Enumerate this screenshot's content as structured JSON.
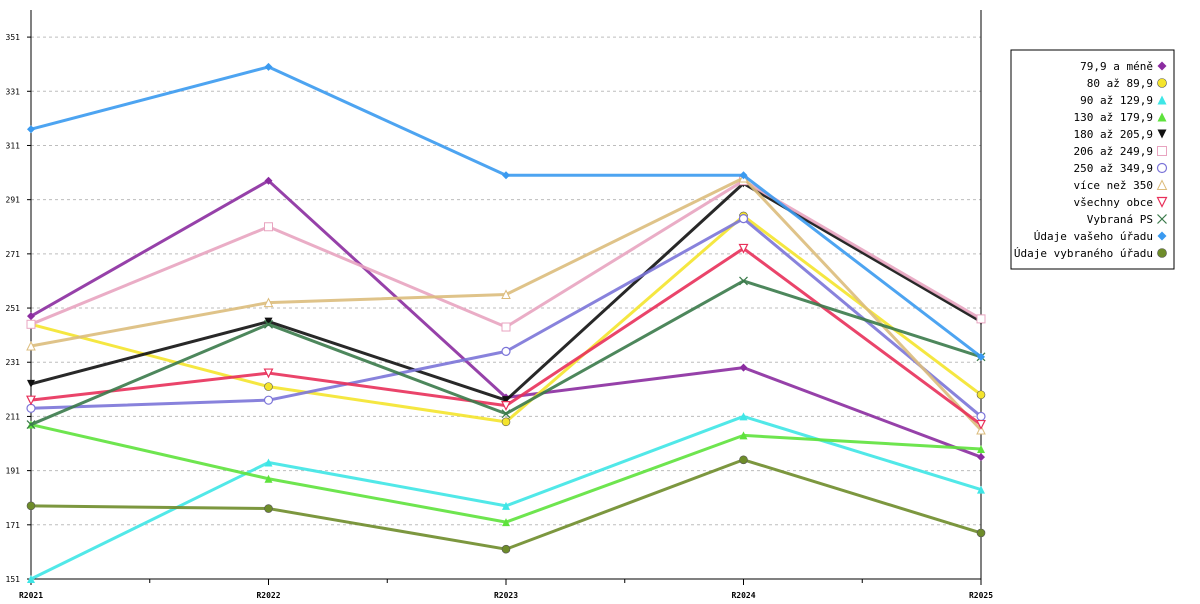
{
  "chart_data": {
    "type": "line",
    "title": "",
    "xlabel": "",
    "ylabel": "",
    "categories": [
      "R2021",
      "R2022",
      "R2023",
      "R2024",
      "R2025"
    ],
    "ylim": [
      151,
      361
    ],
    "yticks": [
      151,
      171,
      191,
      211,
      231,
      251,
      271,
      291,
      311,
      331,
      351
    ],
    "grid": true,
    "legend_position": "right",
    "series": [
      {
        "name": "79,9 a méně",
        "color": "#8b2ca0",
        "marker": "diamond",
        "values": [
          248,
          298,
          218,
          229,
          196
        ]
      },
      {
        "name": "80 až 89,9",
        "color": "#f4e42c",
        "marker": "circle",
        "values": [
          245,
          222,
          209,
          285,
          219
        ]
      },
      {
        "name": "90 až 129,9",
        "color": "#3ee6e6",
        "marker": "triangle-up",
        "values": [
          151,
          194,
          178,
          211,
          184
        ]
      },
      {
        "name": "130 až 179,9",
        "color": "#5ee23c",
        "marker": "triangle-up",
        "values": [
          208,
          188,
          172,
          204,
          199
        ]
      },
      {
        "name": "180 až 205,9",
        "color": "#111111",
        "marker": "triangle-down",
        "values": [
          223,
          246,
          217,
          297,
          246
        ]
      },
      {
        "name": "206 až 249,9",
        "color": "#e8a4c0",
        "marker": "square-open",
        "values": [
          245,
          281,
          244,
          298,
          247
        ]
      },
      {
        "name": "250 až 349,9",
        "color": "#7b74d8",
        "marker": "circle-open",
        "values": [
          214,
          217,
          235,
          284,
          211
        ]
      },
      {
        "name": "více než 350",
        "color": "#dcbc7c",
        "marker": "triangle-up-open",
        "values": [
          237,
          253,
          256,
          299,
          206
        ]
      },
      {
        "name": "všechny obce",
        "color": "#e8305a",
        "marker": "triangle-down-open",
        "values": [
          217,
          227,
          215,
          273,
          208
        ]
      },
      {
        "name": "Vybraná PS",
        "color": "#3a7a4a",
        "marker": "x",
        "values": [
          208,
          245,
          212,
          261,
          233
        ]
      },
      {
        "name": "Údaje vašeho úřadu",
        "color": "#3a9af0",
        "marker": "diamond",
        "values": [
          317,
          340,
          300,
          300,
          233
        ]
      },
      {
        "name": "Údaje vybraného úřadu",
        "color": "#6e8c2a",
        "marker": "circle",
        "values": [
          178,
          177,
          162,
          195,
          168
        ]
      }
    ]
  }
}
